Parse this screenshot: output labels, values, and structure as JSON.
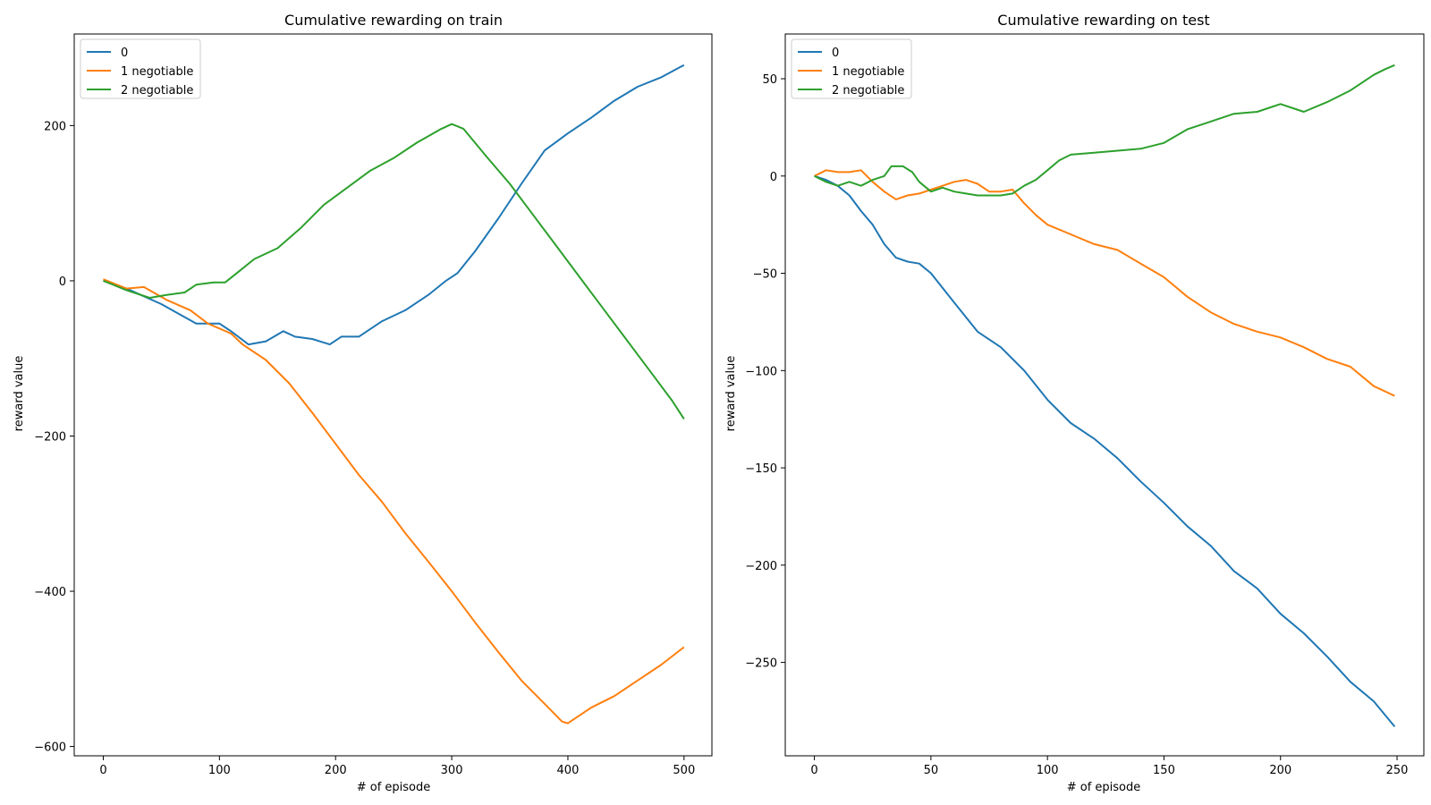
{
  "chart_data": [
    {
      "type": "line",
      "title": "Cumulative rewarding on train",
      "xlabel": "# of episode",
      "ylabel": "reward value",
      "xlim": [
        -25,
        524
      ],
      "ylim": [
        -612,
        318
      ],
      "xticks": [
        0,
        100,
        200,
        300,
        400,
        500
      ],
      "xtick_labels": [
        "0",
        "100",
        "200",
        "300",
        "400",
        "500"
      ],
      "yticks": [
        -600,
        -400,
        -200,
        0,
        200
      ],
      "ytick_labels": [
        "−600",
        "−400",
        "−200",
        "0",
        "200"
      ],
      "legend_position": "upper-left",
      "grid": false,
      "series": [
        {
          "name": "0",
          "color": "#1f77b4",
          "points": [
            [
              0,
              0
            ],
            [
              20,
              -10
            ],
            [
              50,
              -30
            ],
            [
              80,
              -55
            ],
            [
              100,
              -55
            ],
            [
              110,
              -65
            ],
            [
              125,
              -82
            ],
            [
              140,
              -78
            ],
            [
              155,
              -65
            ],
            [
              165,
              -72
            ],
            [
              180,
              -75
            ],
            [
              195,
              -82
            ],
            [
              205,
              -72
            ],
            [
              220,
              -72
            ],
            [
              240,
              -52
            ],
            [
              260,
              -38
            ],
            [
              280,
              -18
            ],
            [
              295,
              0
            ],
            [
              305,
              10
            ],
            [
              320,
              38
            ],
            [
              340,
              80
            ],
            [
              360,
              125
            ],
            [
              380,
              168
            ],
            [
              400,
              190
            ],
            [
              420,
              210
            ],
            [
              440,
              232
            ],
            [
              460,
              250
            ],
            [
              480,
              262
            ],
            [
              500,
              278
            ]
          ]
        },
        {
          "name": "1 negotiable",
          "color": "#ff7f0e",
          "points": [
            [
              0,
              2
            ],
            [
              20,
              -10
            ],
            [
              35,
              -8
            ],
            [
              55,
              -25
            ],
            [
              75,
              -38
            ],
            [
              90,
              -55
            ],
            [
              110,
              -68
            ],
            [
              120,
              -82
            ],
            [
              140,
              -102
            ],
            [
              160,
              -132
            ],
            [
              180,
              -170
            ],
            [
              200,
              -210
            ],
            [
              220,
              -250
            ],
            [
              240,
              -285
            ],
            [
              260,
              -325
            ],
            [
              280,
              -362
            ],
            [
              300,
              -400
            ],
            [
              320,
              -440
            ],
            [
              340,
              -478
            ],
            [
              360,
              -515
            ],
            [
              380,
              -545
            ],
            [
              395,
              -568
            ],
            [
              400,
              -570
            ],
            [
              420,
              -550
            ],
            [
              440,
              -535
            ],
            [
              460,
              -515
            ],
            [
              480,
              -495
            ],
            [
              500,
              -472
            ]
          ]
        },
        {
          "name": "2 negotiable",
          "color": "#2ca02c",
          "points": [
            [
              0,
              0
            ],
            [
              20,
              -12
            ],
            [
              40,
              -22
            ],
            [
              55,
              -18
            ],
            [
              70,
              -15
            ],
            [
              80,
              -5
            ],
            [
              95,
              -2
            ],
            [
              105,
              -2
            ],
            [
              115,
              10
            ],
            [
              130,
              28
            ],
            [
              150,
              42
            ],
            [
              170,
              68
            ],
            [
              190,
              98
            ],
            [
              210,
              120
            ],
            [
              230,
              142
            ],
            [
              250,
              158
            ],
            [
              270,
              178
            ],
            [
              290,
              195
            ],
            [
              300,
              202
            ],
            [
              310,
              196
            ],
            [
              330,
              160
            ],
            [
              350,
              125
            ],
            [
              370,
              85
            ],
            [
              390,
              45
            ],
            [
              410,
              5
            ],
            [
              430,
              -35
            ],
            [
              450,
              -75
            ],
            [
              470,
              -115
            ],
            [
              490,
              -155
            ],
            [
              500,
              -178
            ]
          ]
        }
      ]
    },
    {
      "type": "line",
      "title": "Cumulative rewarding on test",
      "xlabel": "# of episode",
      "ylabel": "reward value",
      "xlim": [
        -12.5,
        261.5
      ],
      "ylim": [
        -298,
        73
      ],
      "xticks": [
        0,
        50,
        100,
        150,
        200,
        250
      ],
      "xtick_labels": [
        "0",
        "50",
        "100",
        "150",
        "200",
        "250"
      ],
      "yticks": [
        -250,
        -200,
        -150,
        -100,
        -50,
        0,
        50
      ],
      "ytick_labels": [
        "−250",
        "−200",
        "−150",
        "−100",
        "−50",
        "0",
        "50"
      ],
      "legend_position": "upper-left",
      "grid": false,
      "series": [
        {
          "name": "0",
          "color": "#1f77b4",
          "points": [
            [
              0,
              0
            ],
            [
              5,
              -2
            ],
            [
              10,
              -5
            ],
            [
              15,
              -10
            ],
            [
              20,
              -18
            ],
            [
              25,
              -25
            ],
            [
              30,
              -35
            ],
            [
              35,
              -42
            ],
            [
              40,
              -44
            ],
            [
              45,
              -45
            ],
            [
              50,
              -50
            ],
            [
              60,
              -65
            ],
            [
              70,
              -80
            ],
            [
              80,
              -88
            ],
            [
              90,
              -100
            ],
            [
              100,
              -115
            ],
            [
              110,
              -127
            ],
            [
              120,
              -135
            ],
            [
              130,
              -145
            ],
            [
              140,
              -157
            ],
            [
              150,
              -168
            ],
            [
              160,
              -180
            ],
            [
              170,
              -190
            ],
            [
              180,
              -203
            ],
            [
              190,
              -212
            ],
            [
              200,
              -225
            ],
            [
              210,
              -235
            ],
            [
              220,
              -247
            ],
            [
              230,
              -260
            ],
            [
              240,
              -270
            ],
            [
              249,
              -283
            ]
          ]
        },
        {
          "name": "1 negotiable",
          "color": "#ff7f0e",
          "points": [
            [
              0,
              0
            ],
            [
              5,
              3
            ],
            [
              10,
              2
            ],
            [
              15,
              2
            ],
            [
              20,
              3
            ],
            [
              25,
              -3
            ],
            [
              30,
              -8
            ],
            [
              35,
              -12
            ],
            [
              40,
              -10
            ],
            [
              45,
              -9
            ],
            [
              50,
              -7
            ],
            [
              55,
              -5
            ],
            [
              60,
              -3
            ],
            [
              65,
              -2
            ],
            [
              70,
              -4
            ],
            [
              75,
              -8
            ],
            [
              80,
              -8
            ],
            [
              85,
              -7
            ],
            [
              90,
              -14
            ],
            [
              95,
              -20
            ],
            [
              100,
              -25
            ],
            [
              110,
              -30
            ],
            [
              120,
              -35
            ],
            [
              130,
              -38
            ],
            [
              140,
              -45
            ],
            [
              150,
              -52
            ],
            [
              160,
              -62
            ],
            [
              170,
              -70
            ],
            [
              180,
              -76
            ],
            [
              190,
              -80
            ],
            [
              200,
              -83
            ],
            [
              210,
              -88
            ],
            [
              220,
              -94
            ],
            [
              230,
              -98
            ],
            [
              240,
              -108
            ],
            [
              249,
              -113
            ]
          ]
        },
        {
          "name": "2 negotiable",
          "color": "#2ca02c",
          "points": [
            [
              0,
              0
            ],
            [
              5,
              -3
            ],
            [
              10,
              -5
            ],
            [
              15,
              -3
            ],
            [
              20,
              -5
            ],
            [
              25,
              -2
            ],
            [
              30,
              0
            ],
            [
              33,
              5
            ],
            [
              38,
              5
            ],
            [
              42,
              2
            ],
            [
              45,
              -3
            ],
            [
              50,
              -8
            ],
            [
              55,
              -6
            ],
            [
              60,
              -8
            ],
            [
              65,
              -9
            ],
            [
              70,
              -10
            ],
            [
              75,
              -10
            ],
            [
              80,
              -10
            ],
            [
              85,
              -9
            ],
            [
              90,
              -5
            ],
            [
              95,
              -2
            ],
            [
              100,
              3
            ],
            [
              105,
              8
            ],
            [
              110,
              11
            ],
            [
              120,
              12
            ],
            [
              130,
              13
            ],
            [
              140,
              14
            ],
            [
              150,
              17
            ],
            [
              160,
              24
            ],
            [
              170,
              28
            ],
            [
              180,
              32
            ],
            [
              190,
              33
            ],
            [
              200,
              37
            ],
            [
              210,
              33
            ],
            [
              220,
              38
            ],
            [
              230,
              44
            ],
            [
              240,
              52
            ],
            [
              245,
              55
            ],
            [
              249,
              57
            ]
          ]
        }
      ]
    }
  ]
}
